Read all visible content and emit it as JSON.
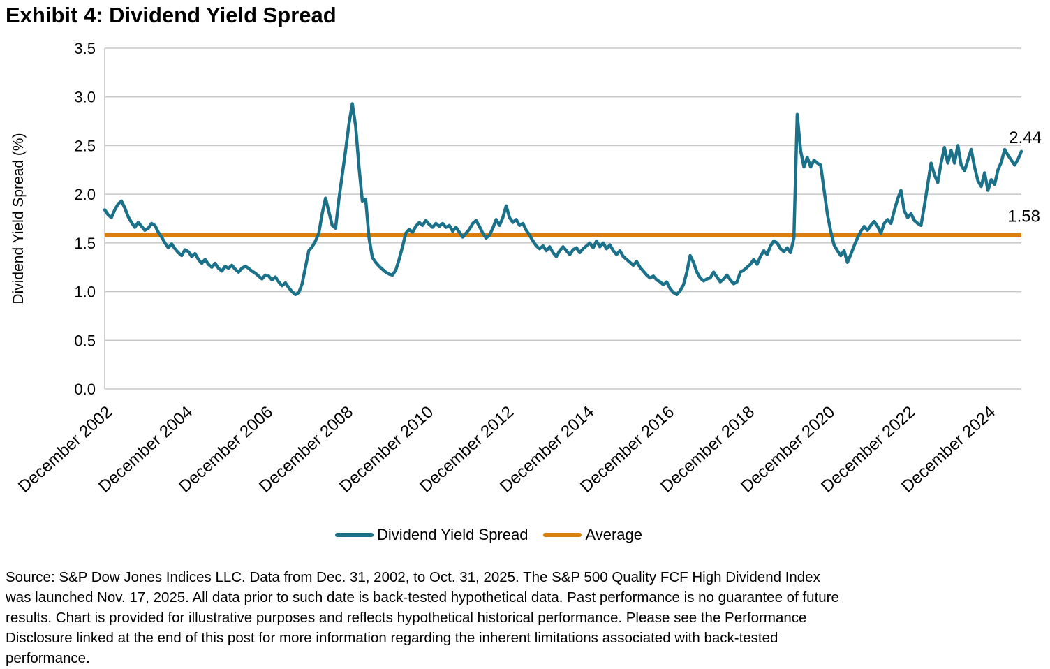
{
  "title": "Exhibit 4: Dividend Yield Spread",
  "colors": {
    "series": "#1B7189",
    "average": "#DB7E10",
    "gridline": "#C8C8C8",
    "axis_border": "#C0C0C0",
    "text": "#000000"
  },
  "y_axis": {
    "title": "Dividend Yield Spread (%)",
    "ticks": [
      "0.0",
      "0.5",
      "1.0",
      "1.5",
      "2.0",
      "2.5",
      "3.0",
      "3.5"
    ]
  },
  "x_axis": {
    "labels": [
      "December 2002",
      "December 2004",
      "December 2006",
      "December 2008",
      "December 2010",
      "December 2012",
      "December 2014",
      "December 2016",
      "December 2018",
      "December 2020",
      "December 2022",
      "December 2024"
    ],
    "months_between_labels": 24
  },
  "legend": [
    {
      "label": "Dividend Yield Spread",
      "color": "#1B7189"
    },
    {
      "label": "Average",
      "color": "#DB7E10"
    }
  ],
  "annotations": {
    "last_value_label": "2.44",
    "average_value_label": "1.58"
  },
  "chart_data": {
    "type": "line",
    "title": "Exhibit 4: Dividend Yield Spread",
    "xlabel": "",
    "ylabel": "Dividend Yield Spread (%)",
    "ylim": [
      0,
      3.5
    ],
    "ytick_interval": 0.5,
    "grid": "horizontal",
    "legend_position": "bottom",
    "x_start": "December 2002",
    "x_end": "October 2025",
    "frequency": "monthly",
    "series": [
      {
        "name": "Dividend Yield Spread",
        "color": "#1B7189",
        "values": [
          1.84,
          1.79,
          1.76,
          1.84,
          1.9,
          1.93,
          1.86,
          1.77,
          1.71,
          1.66,
          1.71,
          1.67,
          1.63,
          1.65,
          1.7,
          1.68,
          1.61,
          1.56,
          1.5,
          1.45,
          1.49,
          1.44,
          1.4,
          1.37,
          1.43,
          1.41,
          1.36,
          1.39,
          1.33,
          1.29,
          1.33,
          1.28,
          1.25,
          1.29,
          1.24,
          1.21,
          1.26,
          1.24,
          1.27,
          1.23,
          1.2,
          1.24,
          1.26,
          1.24,
          1.21,
          1.19,
          1.16,
          1.13,
          1.17,
          1.16,
          1.12,
          1.15,
          1.1,
          1.06,
          1.09,
          1.04,
          1.0,
          0.97,
          0.99,
          1.08,
          1.25,
          1.42,
          1.46,
          1.52,
          1.6,
          1.8,
          1.96,
          1.82,
          1.68,
          1.65,
          1.95,
          2.2,
          2.45,
          2.72,
          2.93,
          2.7,
          2.28,
          1.93,
          1.95,
          1.55,
          1.35,
          1.3,
          1.26,
          1.23,
          1.2,
          1.18,
          1.17,
          1.22,
          1.33,
          1.46,
          1.6,
          1.64,
          1.61,
          1.67,
          1.71,
          1.68,
          1.73,
          1.69,
          1.66,
          1.7,
          1.67,
          1.7,
          1.66,
          1.68,
          1.62,
          1.66,
          1.61,
          1.56,
          1.6,
          1.64,
          1.7,
          1.73,
          1.67,
          1.6,
          1.55,
          1.58,
          1.65,
          1.74,
          1.68,
          1.76,
          1.88,
          1.76,
          1.71,
          1.74,
          1.68,
          1.7,
          1.63,
          1.58,
          1.52,
          1.47,
          1.44,
          1.47,
          1.42,
          1.46,
          1.4,
          1.36,
          1.42,
          1.46,
          1.42,
          1.38,
          1.43,
          1.45,
          1.4,
          1.44,
          1.47,
          1.5,
          1.45,
          1.52,
          1.46,
          1.5,
          1.44,
          1.48,
          1.42,
          1.38,
          1.42,
          1.36,
          1.33,
          1.3,
          1.27,
          1.31,
          1.25,
          1.21,
          1.17,
          1.14,
          1.16,
          1.12,
          1.1,
          1.07,
          1.1,
          1.03,
          0.99,
          0.97,
          1.01,
          1.07,
          1.2,
          1.37,
          1.3,
          1.2,
          1.14,
          1.11,
          1.13,
          1.14,
          1.2,
          1.15,
          1.1,
          1.13,
          1.17,
          1.12,
          1.08,
          1.1,
          1.2,
          1.22,
          1.25,
          1.28,
          1.33,
          1.28,
          1.36,
          1.42,
          1.38,
          1.47,
          1.52,
          1.5,
          1.44,
          1.41,
          1.45,
          1.4,
          1.55,
          2.82,
          2.45,
          2.28,
          2.38,
          2.28,
          2.35,
          2.32,
          2.3,
          2.05,
          1.8,
          1.62,
          1.48,
          1.42,
          1.37,
          1.42,
          1.3,
          1.38,
          1.47,
          1.55,
          1.62,
          1.67,
          1.63,
          1.68,
          1.72,
          1.67,
          1.6,
          1.7,
          1.74,
          1.7,
          1.83,
          1.95,
          2.04,
          1.83,
          1.76,
          1.8,
          1.73,
          1.7,
          1.68,
          1.88,
          2.1,
          2.32,
          2.2,
          2.12,
          2.32,
          2.48,
          2.32,
          2.45,
          2.32,
          2.5,
          2.3,
          2.24,
          2.35,
          2.46,
          2.28,
          2.14,
          2.08,
          2.22,
          2.04,
          2.15,
          2.1,
          2.25,
          2.33,
          2.46,
          2.4,
          2.35,
          2.3,
          2.36,
          2.44
        ]
      },
      {
        "name": "Average",
        "color": "#DB7E10",
        "value": 1.58
      }
    ]
  },
  "footer": {
    "lines": [
      "Source: S&P Dow Jones Indices LLC. Data from Dec. 31, 2002, to Oct. 31, 2025. The S&P 500 Quality FCF High Dividend Index",
      "was launched Nov. 17, 2025. All data prior to such date is back-tested hypothetical data. Past performance is no guarantee of future",
      "results. Chart is provided for illustrative purposes and reflects hypothetical historical performance. Please see the Performance",
      "Disclosure linked at the end of this post for more information regarding the inherent limitations associated with back-tested",
      "performance."
    ]
  }
}
